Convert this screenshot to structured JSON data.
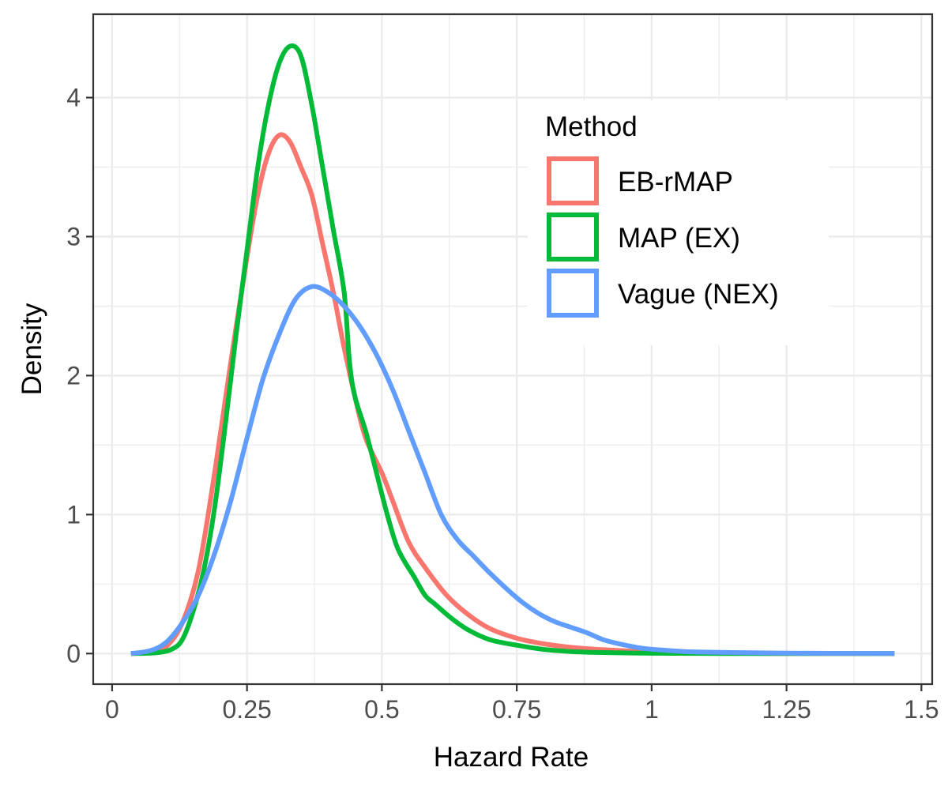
{
  "chart_data": {
    "type": "line",
    "xlabel": "Hazard Rate",
    "ylabel": "Density",
    "xlim": [
      -0.035,
      1.52
    ],
    "ylim": [
      -0.22,
      4.6
    ],
    "x_ticks": [
      0,
      0.25,
      0.5,
      0.75,
      1,
      1.25,
      1.5
    ],
    "x_tick_labels": [
      "0",
      "0.25",
      "0.5",
      "0.75",
      "1",
      "1.25",
      "1.5"
    ],
    "y_ticks": [
      0,
      1,
      2,
      3,
      4
    ],
    "y_tick_labels": [
      "0",
      "1",
      "2",
      "3",
      "4"
    ],
    "grid": true,
    "legend": {
      "title": "Method",
      "position": "top-right"
    },
    "series": [
      {
        "name": "EB-rMAP",
        "color": "#F8766D",
        "points": [
          [
            0.035,
            0
          ],
          [
            0.07,
            0.01
          ],
          [
            0.1,
            0.05
          ],
          [
            0.13,
            0.22
          ],
          [
            0.16,
            0.6
          ],
          [
            0.19,
            1.3
          ],
          [
            0.22,
            2.1
          ],
          [
            0.25,
            2.85
          ],
          [
            0.27,
            3.3
          ],
          [
            0.29,
            3.6
          ],
          [
            0.31,
            3.73
          ],
          [
            0.33,
            3.68
          ],
          [
            0.35,
            3.5
          ],
          [
            0.37,
            3.3
          ],
          [
            0.39,
            2.95
          ],
          [
            0.41,
            2.6
          ],
          [
            0.43,
            2.2
          ],
          [
            0.45,
            1.85
          ],
          [
            0.47,
            1.55
          ],
          [
            0.5,
            1.3
          ],
          [
            0.52,
            1.1
          ],
          [
            0.55,
            0.8
          ],
          [
            0.58,
            0.62
          ],
          [
            0.62,
            0.42
          ],
          [
            0.66,
            0.28
          ],
          [
            0.7,
            0.18
          ],
          [
            0.75,
            0.11
          ],
          [
            0.8,
            0.07
          ],
          [
            0.85,
            0.045
          ],
          [
            0.9,
            0.03
          ],
          [
            0.95,
            0.02
          ],
          [
            1.0,
            0.01
          ],
          [
            1.1,
            0.004
          ],
          [
            1.2,
            0.001
          ],
          [
            1.3,
            0
          ],
          [
            1.45,
            0
          ]
        ]
      },
      {
        "name": "MAP (EX)",
        "color": "#00BA38",
        "points": [
          [
            0.035,
            0
          ],
          [
            0.08,
            0.005
          ],
          [
            0.11,
            0.03
          ],
          [
            0.13,
            0.1
          ],
          [
            0.15,
            0.3
          ],
          [
            0.17,
            0.6
          ],
          [
            0.19,
            1.05
          ],
          [
            0.21,
            1.65
          ],
          [
            0.23,
            2.3
          ],
          [
            0.25,
            2.9
          ],
          [
            0.27,
            3.5
          ],
          [
            0.29,
            3.95
          ],
          [
            0.31,
            4.25
          ],
          [
            0.33,
            4.37
          ],
          [
            0.35,
            4.3
          ],
          [
            0.37,
            3.95
          ],
          [
            0.39,
            3.5
          ],
          [
            0.41,
            3.05
          ],
          [
            0.43,
            2.6
          ],
          [
            0.44,
            2.1
          ],
          [
            0.45,
            1.85
          ],
          [
            0.47,
            1.6
          ],
          [
            0.49,
            1.3
          ],
          [
            0.51,
            1.0
          ],
          [
            0.53,
            0.75
          ],
          [
            0.56,
            0.55
          ],
          [
            0.58,
            0.42
          ],
          [
            0.6,
            0.35
          ],
          [
            0.63,
            0.25
          ],
          [
            0.66,
            0.17
          ],
          [
            0.7,
            0.1
          ],
          [
            0.75,
            0.06
          ],
          [
            0.8,
            0.03
          ],
          [
            0.85,
            0.015
          ],
          [
            0.9,
            0.008
          ],
          [
            1.0,
            0.002
          ],
          [
            1.1,
            0.001
          ],
          [
            1.2,
            0
          ],
          [
            1.45,
            0
          ]
        ]
      },
      {
        "name": "Vague (NEX)",
        "color": "#619CFF",
        "points": [
          [
            0.035,
            0
          ],
          [
            0.07,
            0.02
          ],
          [
            0.1,
            0.08
          ],
          [
            0.13,
            0.22
          ],
          [
            0.16,
            0.42
          ],
          [
            0.19,
            0.72
          ],
          [
            0.22,
            1.1
          ],
          [
            0.25,
            1.55
          ],
          [
            0.28,
            1.98
          ],
          [
            0.31,
            2.3
          ],
          [
            0.34,
            2.55
          ],
          [
            0.37,
            2.64
          ],
          [
            0.4,
            2.6
          ],
          [
            0.43,
            2.5
          ],
          [
            0.46,
            2.35
          ],
          [
            0.49,
            2.15
          ],
          [
            0.52,
            1.9
          ],
          [
            0.55,
            1.6
          ],
          [
            0.58,
            1.3
          ],
          [
            0.61,
            1.0
          ],
          [
            0.64,
            0.82
          ],
          [
            0.67,
            0.7
          ],
          [
            0.7,
            0.58
          ],
          [
            0.73,
            0.47
          ],
          [
            0.76,
            0.37
          ],
          [
            0.79,
            0.29
          ],
          [
            0.82,
            0.23
          ],
          [
            0.85,
            0.19
          ],
          [
            0.88,
            0.15
          ],
          [
            0.91,
            0.1
          ],
          [
            0.94,
            0.07
          ],
          [
            0.98,
            0.04
          ],
          [
            1.02,
            0.025
          ],
          [
            1.06,
            0.015
          ],
          [
            1.1,
            0.01
          ],
          [
            1.2,
            0.005
          ],
          [
            1.3,
            0.002
          ],
          [
            1.45,
            0
          ]
        ]
      }
    ]
  }
}
